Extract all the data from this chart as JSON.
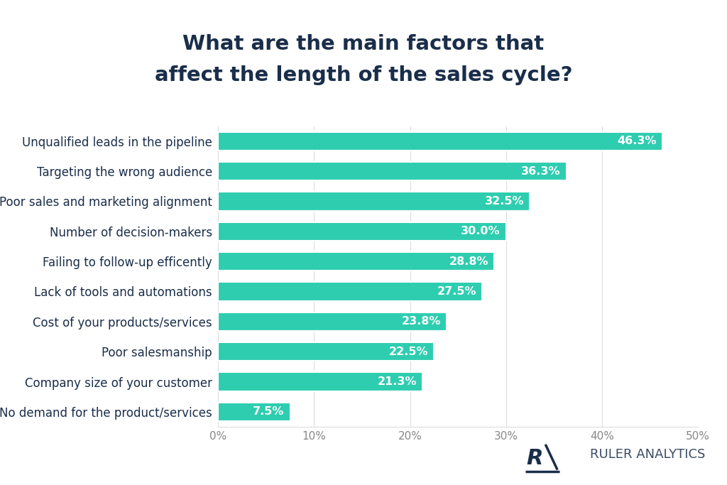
{
  "title_line1": "What are the main factors that",
  "title_line2": "affect the length of the sales cycle?",
  "categories": [
    "No demand for the product/services",
    "Company size of your customer",
    "Poor salesmanship",
    "Cost of your products/services",
    "Lack of tools and automations",
    "Failing to follow-up efficently",
    "Number of decision-makers",
    "Poor sales and marketing alignment",
    "Targeting the wrong audience",
    "Unqualified leads in the pipeline"
  ],
  "values": [
    7.5,
    21.3,
    22.5,
    23.8,
    27.5,
    28.8,
    30.0,
    32.5,
    36.3,
    46.3
  ],
  "labels": [
    "7.5%",
    "21.3%",
    "22.5%",
    "23.8%",
    "27.5%",
    "28.8%",
    "30.0%",
    "32.5%",
    "36.3%",
    "46.3%"
  ],
  "bar_color": "#2ECDB0",
  "bar_edge_color": "white",
  "label_color": "white",
  "title_color": "#1a2e4a",
  "axis_label_color": "#888888",
  "background_color": "#ffffff",
  "grid_color": "#dddddd",
  "xlim": [
    0,
    50
  ],
  "xticks": [
    0,
    10,
    20,
    30,
    40,
    50
  ],
  "xtick_labels": [
    "0%",
    "10%",
    "20%",
    "30%",
    "40%",
    "50%"
  ],
  "title_fontsize": 21,
  "category_fontsize": 12,
  "label_fontsize": 11.5,
  "xtick_fontsize": 11,
  "bar_height": 0.62,
  "watermark_text": "RULER ANALYTICS",
  "watermark_fontsize": 13,
  "logo_color": "#1a2e4a"
}
